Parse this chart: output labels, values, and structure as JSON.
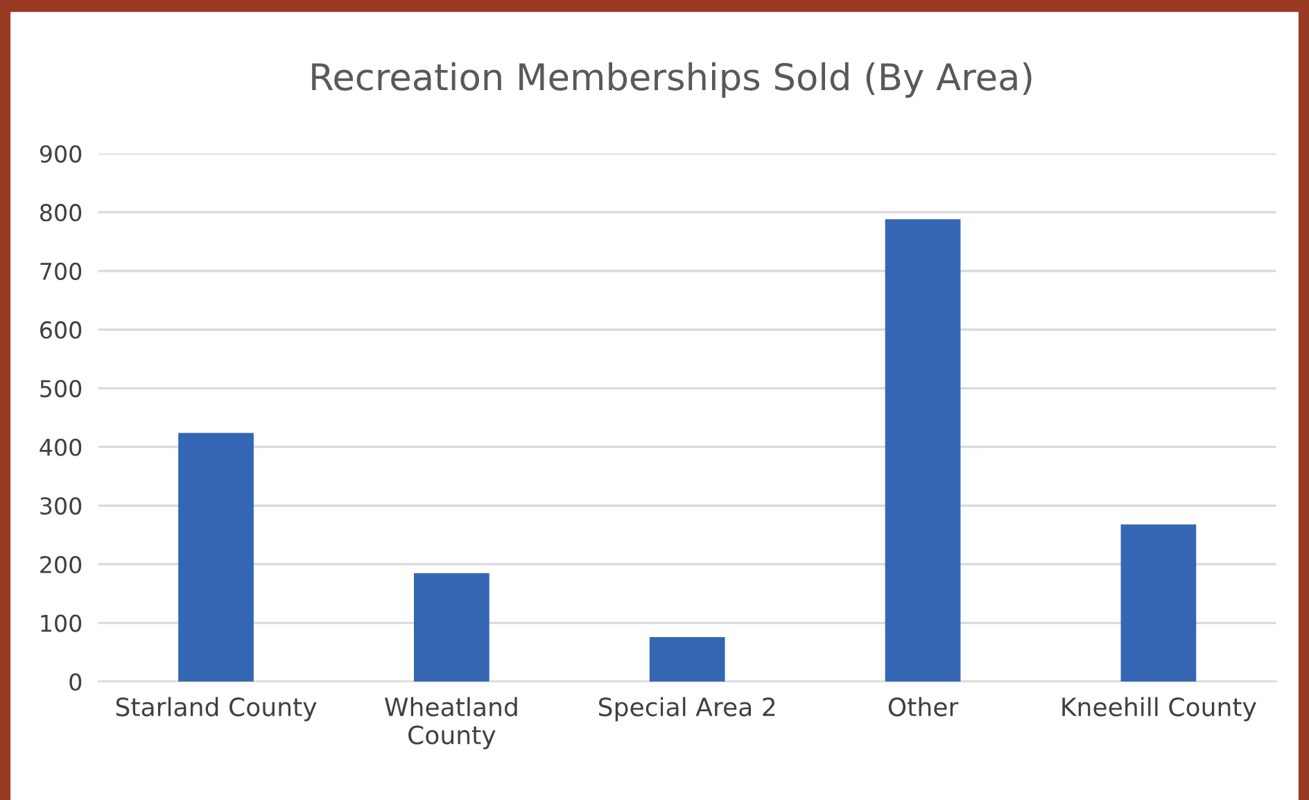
{
  "chart_data": {
    "type": "bar",
    "title": "Recreation Memberships Sold (By Area)",
    "categories": [
      "Starland County",
      "Wheatland\nCounty",
      "Special Area 2",
      "Other",
      "Kneehill County"
    ],
    "values": [
      424,
      185,
      76,
      788,
      268
    ],
    "color": "#3566b4",
    "ylim": [
      0,
      900
    ],
    "yticks": [
      0,
      100,
      200,
      300,
      400,
      500,
      600,
      700,
      800,
      900
    ],
    "grid": "y"
  }
}
